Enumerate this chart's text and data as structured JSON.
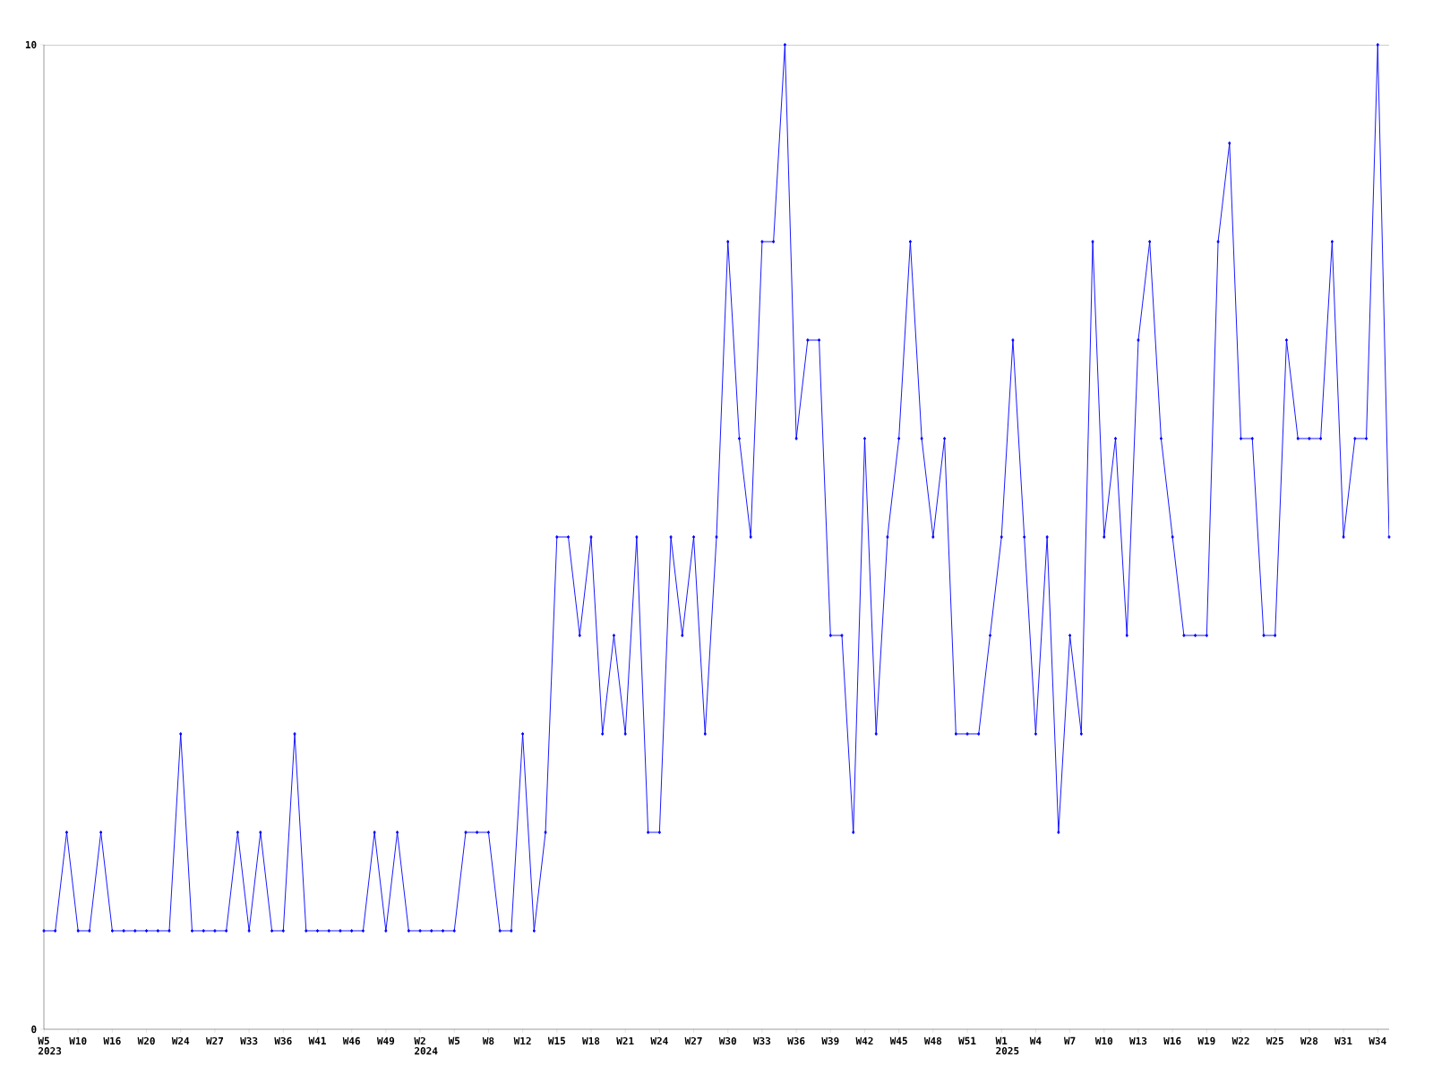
{
  "chart_data": {
    "type": "line",
    "categories": [
      "W5",
      null,
      null,
      "W10",
      null,
      null,
      "W16",
      null,
      null,
      "W20",
      null,
      null,
      "W24",
      null,
      null,
      "W27",
      null,
      null,
      "W33",
      null,
      null,
      "W36",
      null,
      null,
      "W41",
      null,
      null,
      "W46",
      null,
      null,
      "W49",
      null,
      null,
      "W2",
      null,
      null,
      "W5",
      null,
      null,
      "W8",
      null,
      null,
      "W12",
      null,
      null,
      "W15",
      null,
      null,
      "W18",
      null,
      null,
      "W21",
      null,
      null,
      "W24",
      null,
      null,
      "W27",
      null,
      null,
      "W30",
      null,
      null,
      "W33",
      null,
      null,
      "W36",
      null,
      null,
      "W39",
      null,
      null,
      "W42",
      null,
      null,
      "W45",
      null,
      null,
      "W48",
      null,
      null,
      "W51",
      null,
      null,
      "W1",
      null,
      null,
      "W4",
      null,
      null,
      "W7",
      null,
      null,
      "W10",
      null,
      null,
      "W13",
      null,
      null,
      "W16",
      null,
      null,
      "W19",
      null,
      null,
      "W22",
      null,
      null,
      "W25",
      null,
      null,
      "W28",
      null,
      null,
      "W31",
      null,
      null,
      "W34",
      null
    ],
    "values": [
      1,
      1,
      2,
      1,
      1,
      2,
      1,
      1,
      1,
      1,
      1,
      1,
      3,
      1,
      1,
      1,
      1,
      2,
      1,
      2,
      1,
      1,
      3,
      1,
      1,
      1,
      1,
      1,
      1,
      2,
      1,
      2,
      1,
      1,
      1,
      1,
      1,
      2,
      2,
      2,
      1,
      1,
      3,
      1,
      2,
      5,
      5,
      4,
      5,
      3,
      4,
      3,
      5,
      2,
      2,
      5,
      4,
      5,
      3,
      5,
      8,
      6,
      5,
      8,
      8,
      10,
      6,
      7,
      7,
      4,
      4,
      2,
      6,
      3,
      5,
      6,
      8,
      6,
      5,
      6,
      3,
      3,
      3,
      4,
      5,
      7,
      5,
      3,
      5,
      2,
      4,
      3,
      8,
      5,
      6,
      4,
      7,
      8,
      6,
      5,
      4,
      4,
      4,
      8,
      9,
      6,
      6,
      4,
      4,
      7,
      6,
      6,
      6,
      8,
      5,
      6,
      6,
      10,
      5
    ],
    "color": "#0000ff",
    "marker": "diamond",
    "line_style": "solid",
    "ylim": [
      0,
      10
    ],
    "yticks": [
      0,
      10
    ],
    "annotations": [
      "2023",
      "2024",
      "2025"
    ]
  }
}
